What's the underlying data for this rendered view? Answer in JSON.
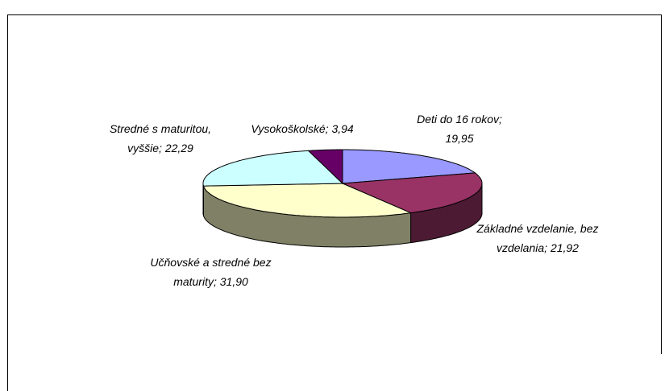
{
  "chart_data": {
    "type": "pie3d",
    "categories": [
      "Deti do 16 rokov",
      "Základné vzdelanie, bez vzdelania",
      "Učňovské a stredné bez maturity",
      "Stredné s maturitou, vyššie",
      "Vysokoškolské"
    ],
    "values": [
      19.95,
      21.92,
      31.9,
      22.29,
      3.94
    ],
    "value_labels": [
      "19,95",
      "21,92",
      "31,90",
      "22,29",
      "3,94"
    ],
    "label_separator": ";",
    "colors": [
      "#9999ff",
      "#993366",
      "#ffffcc",
      "#ccffff",
      "#660066"
    ],
    "side_colors": [
      "#4d4d80",
      "#4d1a33",
      "#808066",
      "#668080",
      "#330033"
    ]
  }
}
